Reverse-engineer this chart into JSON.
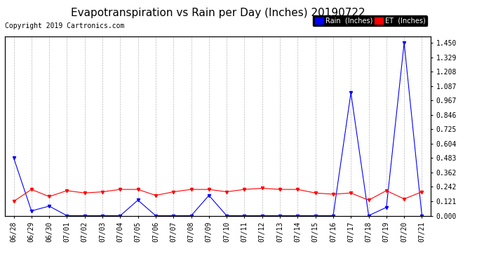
{
  "title": "Evapotranspiration vs Rain per Day (Inches) 20190722",
  "copyright": "Copyright 2019 Cartronics.com",
  "labels": [
    "06/28",
    "06/29",
    "06/30",
    "07/01",
    "07/02",
    "07/03",
    "07/04",
    "07/05",
    "07/06",
    "07/07",
    "07/08",
    "07/09",
    "07/10",
    "07/11",
    "07/12",
    "07/13",
    "07/14",
    "07/15",
    "07/16",
    "07/17",
    "07/18",
    "07/19",
    "07/20",
    "07/21"
  ],
  "rain": [
    0.483,
    0.04,
    0.08,
    0.0,
    0.0,
    0.0,
    0.0,
    0.13,
    0.0,
    0.0,
    0.0,
    0.17,
    0.0,
    0.0,
    0.0,
    0.0,
    0.0,
    0.0,
    0.0,
    1.03,
    0.0,
    0.07,
    1.45,
    0.0
  ],
  "et": [
    0.12,
    0.22,
    0.16,
    0.21,
    0.19,
    0.2,
    0.22,
    0.22,
    0.17,
    0.2,
    0.22,
    0.22,
    0.2,
    0.22,
    0.23,
    0.22,
    0.22,
    0.19,
    0.18,
    0.19,
    0.13,
    0.21,
    0.14,
    0.2
  ],
  "rain_color": "#0000ff",
  "et_color": "#ff0000",
  "background_color": "#ffffff",
  "grid_color": "#bbbbbb",
  "ylim": [
    0.0,
    1.5
  ],
  "yticks": [
    0.0,
    0.121,
    0.242,
    0.362,
    0.483,
    0.604,
    0.725,
    0.846,
    0.967,
    1.087,
    1.208,
    1.329,
    1.45
  ],
  "title_fontsize": 11,
  "copyright_fontsize": 7,
  "tick_fontsize": 7,
  "legend_rain_label": "Rain  (Inches)",
  "legend_et_label": "ET  (Inches)",
  "legend_fontsize": 7
}
